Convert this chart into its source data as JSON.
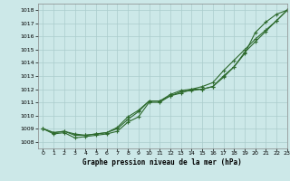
{
  "title": "Graphe pression niveau de la mer (hPa)",
  "bg_color": "#cce8e8",
  "grid_color": "#aacccc",
  "line_color": "#2d6a2d",
  "xlim": [
    -0.5,
    23
  ],
  "ylim": [
    1007.5,
    1018.5
  ],
  "yticks": [
    1008,
    1009,
    1010,
    1011,
    1012,
    1013,
    1014,
    1015,
    1016,
    1017,
    1018
  ],
  "xticks": [
    0,
    1,
    2,
    3,
    4,
    5,
    6,
    7,
    8,
    9,
    10,
    11,
    12,
    13,
    14,
    15,
    16,
    17,
    18,
    19,
    20,
    21,
    22,
    23
  ],
  "series1": [
    1009.0,
    1008.7,
    1008.8,
    1008.6,
    1008.5,
    1008.6,
    1008.7,
    1009.1,
    1009.9,
    1010.4,
    1011.1,
    1011.1,
    1011.6,
    1011.9,
    1012.0,
    1012.2,
    1012.5,
    1013.4,
    1014.2,
    1015.0,
    1015.8,
    1016.5,
    1017.2,
    1018.0
  ],
  "series2": [
    1009.0,
    1008.7,
    1008.8,
    1008.5,
    1008.5,
    1008.6,
    1008.7,
    1009.0,
    1009.7,
    1010.3,
    1011.1,
    1011.1,
    1011.5,
    1011.8,
    1011.9,
    1012.0,
    1012.2,
    1013.0,
    1013.7,
    1014.8,
    1015.6,
    1016.4,
    1017.2,
    1018.0
  ],
  "series3": [
    1009.0,
    1008.6,
    1008.7,
    1008.3,
    1008.4,
    1008.5,
    1008.6,
    1008.8,
    1009.5,
    1009.9,
    1011.0,
    1011.0,
    1011.5,
    1011.7,
    1012.0,
    1012.0,
    1012.2,
    1012.9,
    1013.7,
    1014.7,
    1016.3,
    1017.1,
    1017.7,
    1018.0
  ]
}
